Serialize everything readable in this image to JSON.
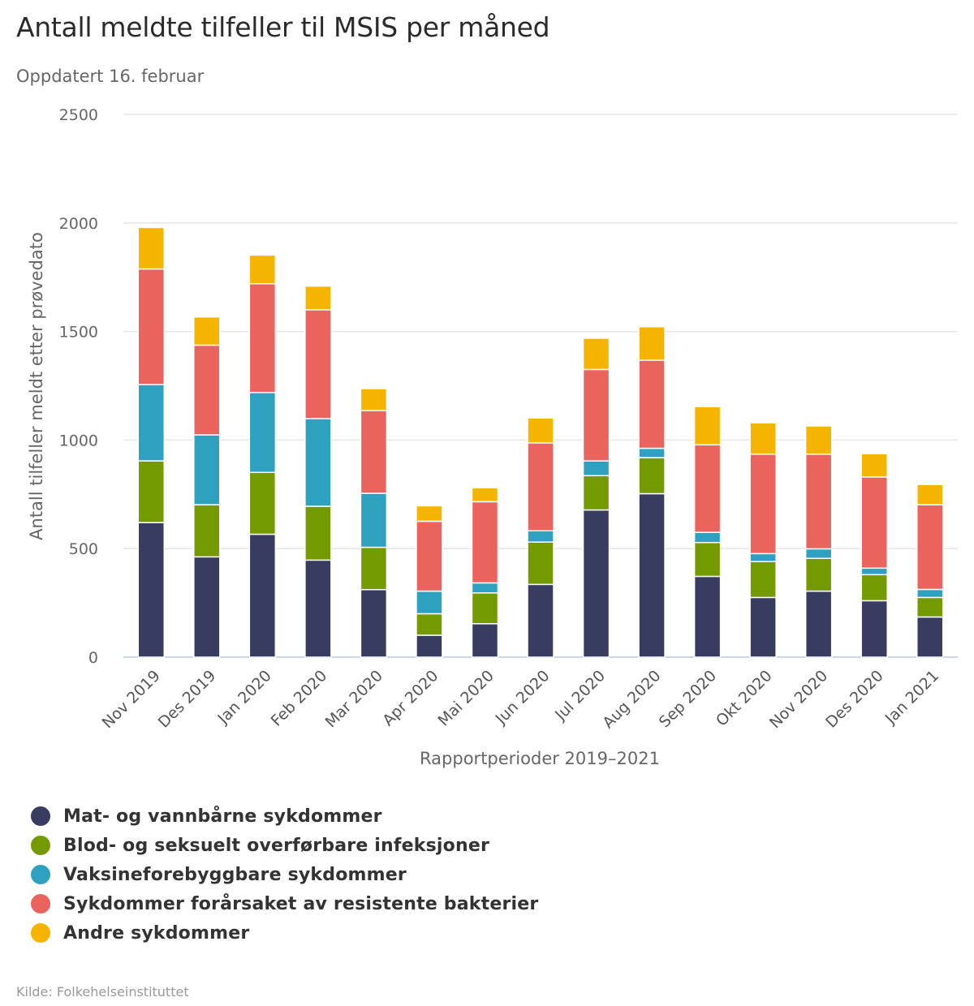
{
  "header": {
    "title": "Antall meldte tilfeller til MSIS per måned",
    "subtitle": "Oppdatert 16. februar"
  },
  "credit": "Kilde: Folkehelseinstituttet",
  "chart_data": {
    "type": "bar",
    "stacked": true,
    "title": "Antall meldte tilfeller til MSIS per måned",
    "subtitle": "Oppdatert 16. februar",
    "xlabel": "Rapportperioder 2019–2021",
    "ylabel": "Antall tilfeller meldt etter prøvedato",
    "ylim": [
      0,
      2500
    ],
    "yticks": [
      0,
      500,
      1000,
      1500,
      2000,
      2500
    ],
    "grid": true,
    "legend_position": "bottom-left",
    "categories": [
      "Nov 2019",
      "Des 2019",
      "Jan 2020",
      "Feb 2020",
      "Mar 2020",
      "Apr 2020",
      "Mai 2020",
      "Jun 2020",
      "Jul 2020",
      "Aug 2020",
      "Sep 2020",
      "Okt 2020",
      "Nov 2020",
      "Des 2020",
      "Jan 2021"
    ],
    "series": [
      {
        "name": "Mat- og vannbårne sykdommer",
        "color": "#393c61",
        "values": [
          620,
          462,
          566,
          447,
          311,
          101,
          154,
          335,
          678,
          753,
          372,
          275,
          304,
          260,
          185
        ]
      },
      {
        "name": "Blod- og seksuelt overførbare infeksjoner",
        "color": "#739a00",
        "values": [
          284,
          240,
          285,
          248,
          195,
          99,
          142,
          195,
          158,
          166,
          156,
          165,
          151,
          120,
          90
        ]
      },
      {
        "name": "Vaksineforebyggbare sykdommer",
        "color": "#2ea1c1",
        "values": [
          352,
          322,
          368,
          404,
          249,
          104,
          46,
          52,
          68,
          43,
          47,
          37,
          44,
          30,
          37
        ]
      },
      {
        "name": "Sykdommer forårsaket av resistente bakterier",
        "color": "#ea635c",
        "values": [
          532,
          413,
          501,
          501,
          381,
          322,
          374,
          405,
          421,
          406,
          403,
          458,
          436,
          420,
          390
        ]
      },
      {
        "name": "Andre sykdommer",
        "color": "#f5b400",
        "values": [
          191,
          130,
          132,
          109,
          101,
          71,
          64,
          115,
          144,
          154,
          176,
          144,
          130,
          107,
          93
        ]
      }
    ]
  }
}
